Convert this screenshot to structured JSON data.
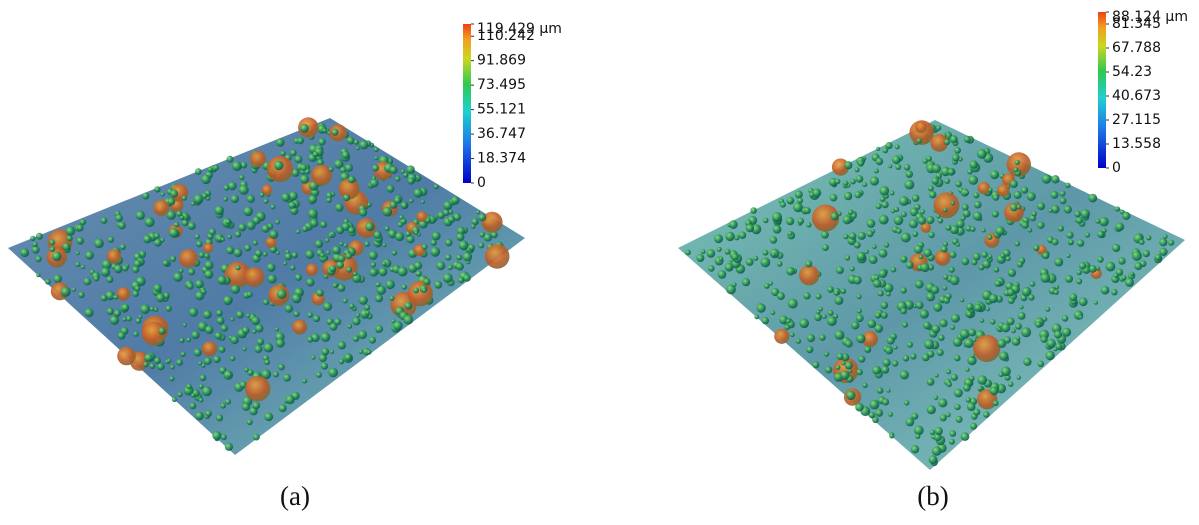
{
  "panels": [
    {
      "caption": "(a)",
      "colorbar": {
        "ticks": [
          {
            "value": 119.429,
            "label": "119.429 µm"
          },
          110.242,
          91.869,
          73.495,
          55.121,
          36.747,
          18.374,
          0
        ]
      }
    },
    {
      "caption": "(b)",
      "colorbar": {
        "ticks": [
          {
            "value": 88.124,
            "label": "88.124 µm"
          },
          81.345,
          67.788,
          54.23,
          40.673,
          27.115,
          13.558,
          0
        ]
      }
    }
  ]
}
